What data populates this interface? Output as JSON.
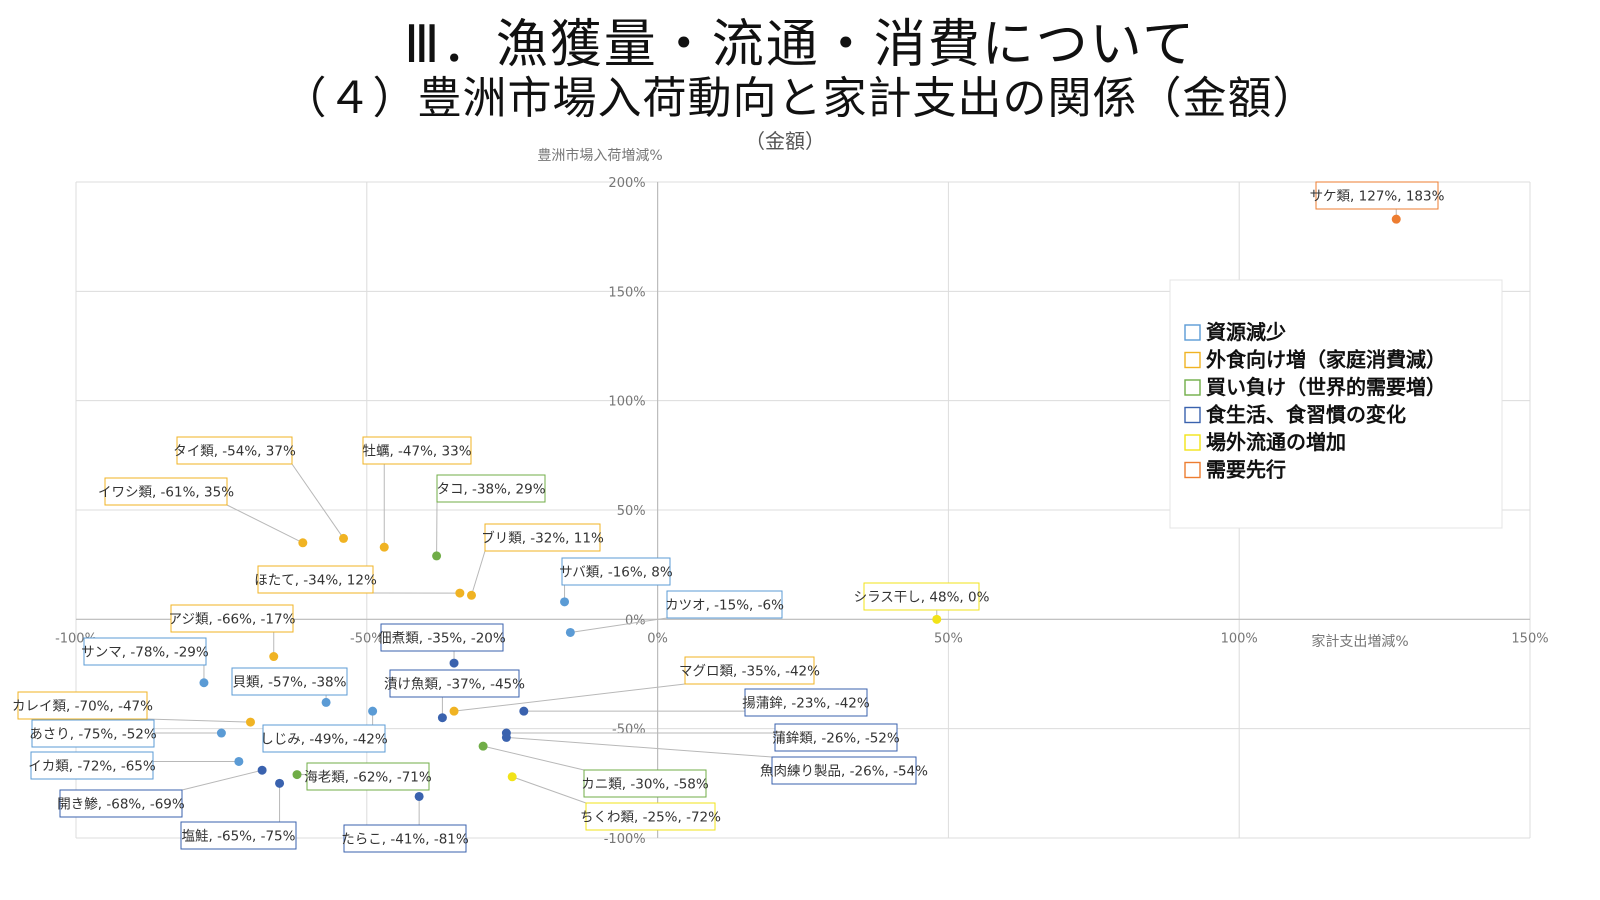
{
  "page": {
    "title_line1": "Ⅲ．漁獲量・流通・消費について",
    "title_line2": "（４）豊洲市場入荷動向と家計支出の関係（金額）"
  },
  "chart_data": {
    "type": "scatter",
    "title": "（金額）",
    "xlabel": "家計支出増減%",
    "ylabel": "豊洲市場入荷増減%",
    "xlim": [
      -100,
      150
    ],
    "ylim": [
      -100,
      200
    ],
    "x_ticks": [
      "-100%",
      "-50%",
      "0%",
      "50%",
      "100%",
      "150%"
    ],
    "y_ticks": [
      "200%",
      "150%",
      "100%",
      "50%",
      "0%",
      "-50%",
      "-100%"
    ],
    "grid": true,
    "legend_position": "right",
    "categories": [
      {
        "key": "resource",
        "name": "資源減少",
        "color": "#5b9bd5"
      },
      {
        "key": "foodservice",
        "name": "外食向け増（家庭消費減）",
        "color": "#f0b323"
      },
      {
        "key": "outbid",
        "name": "買い負け（世界的需要増）",
        "color": "#70ad47"
      },
      {
        "key": "diet",
        "name": "食生活、食習慣の変化",
        "color": "#3a62ae"
      },
      {
        "key": "offmarket",
        "name": "場外流通の増加",
        "color": "#f2e318"
      },
      {
        "key": "demand",
        "name": "需要先行",
        "color": "#ed7d31"
      }
    ],
    "points": [
      {
        "label": "サケ類, 127%, 183%",
        "x": 127,
        "y": 183,
        "cat": "demand"
      },
      {
        "label": "タイ類, -54%, 37%",
        "x": -54,
        "y": 37,
        "cat": "foodservice"
      },
      {
        "label": "牡蠣, -47%, 33%",
        "x": -47,
        "y": 33,
        "cat": "foodservice"
      },
      {
        "label": "イワシ類, -61%, 35%",
        "x": -61,
        "y": 35,
        "cat": "foodservice"
      },
      {
        "label": "タコ, -38%, 29%",
        "x": -38,
        "y": 29,
        "cat": "outbid"
      },
      {
        "label": "ブリ類, -32%, 11%",
        "x": -32,
        "y": 11,
        "cat": "foodservice"
      },
      {
        "label": "ほたて, -34%, 12%",
        "x": -34,
        "y": 12,
        "cat": "foodservice"
      },
      {
        "label": "サバ類, -16%, 8%",
        "x": -16,
        "y": 8,
        "cat": "resource"
      },
      {
        "label": "カツオ, -15%, -6%",
        "x": -15,
        "y": -6,
        "cat": "resource"
      },
      {
        "label": "シラス干し, 48%, 0%",
        "x": 48,
        "y": 0,
        "cat": "offmarket"
      },
      {
        "label": "アジ類, -66%, -17%",
        "x": -66,
        "y": -17,
        "cat": "foodservice"
      },
      {
        "label": "佃煮類, -35%, -20%",
        "x": -35,
        "y": -20,
        "cat": "diet"
      },
      {
        "label": "サンマ, -78%, -29%",
        "x": -78,
        "y": -29,
        "cat": "resource"
      },
      {
        "label": "貝類, -57%, -38%",
        "x": -57,
        "y": -38,
        "cat": "resource"
      },
      {
        "label": "漬け魚類, -37%, -45%",
        "x": -37,
        "y": -45,
        "cat": "diet"
      },
      {
        "label": "マグロ類, -35%, -42%",
        "x": -35,
        "y": -42,
        "cat": "foodservice"
      },
      {
        "label": "揚蒲鉾, -23%, -42%",
        "x": -23,
        "y": -42,
        "cat": "diet"
      },
      {
        "label": "カレイ類, -70%, -47%",
        "x": -70,
        "y": -47,
        "cat": "foodservice"
      },
      {
        "label": "しじみ, -49%, -42%",
        "x": -49,
        "y": -42,
        "cat": "resource"
      },
      {
        "label": "あさり, -75%, -52%",
        "x": -75,
        "y": -52,
        "cat": "resource"
      },
      {
        "label": "蒲鉾類, -26%, -52%",
        "x": -26,
        "y": -52,
        "cat": "diet"
      },
      {
        "label": "魚肉練り製品, -26%, -54%",
        "x": -26,
        "y": -54,
        "cat": "diet"
      },
      {
        "label": "イカ類, -72%, -65%",
        "x": -72,
        "y": -65,
        "cat": "resource"
      },
      {
        "label": "海老類, -62%, -71%",
        "x": -62,
        "y": -71,
        "cat": "outbid"
      },
      {
        "label": "カニ類, -30%, -58%",
        "x": -30,
        "y": -58,
        "cat": "outbid"
      },
      {
        "label": "開き鯵, -68%, -69%",
        "x": -68,
        "y": -69,
        "cat": "diet"
      },
      {
        "label": "ちくわ類, -25%, -72%",
        "x": -25,
        "y": -72,
        "cat": "offmarket"
      },
      {
        "label": "塩鮭, -65%, -75%",
        "x": -65,
        "y": -75,
        "cat": "diet"
      },
      {
        "label": "たらこ, -41%, -81%",
        "x": -41,
        "y": -81,
        "cat": "diet"
      }
    ]
  }
}
